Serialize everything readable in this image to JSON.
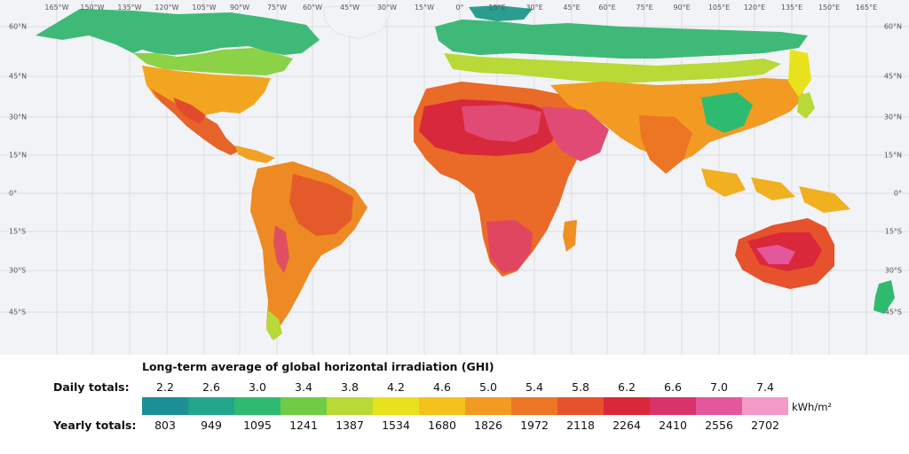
{
  "map": {
    "longitude_labels": [
      "165°W",
      "150°W",
      "135°W",
      "120°W",
      "105°W",
      "90°W",
      "75°W",
      "60°W",
      "45°W",
      "30°W",
      "15°W",
      "0°",
      "15°E",
      "30°E",
      "45°E",
      "60°E",
      "75°E",
      "90°E",
      "105°E",
      "120°E",
      "135°E",
      "150°E",
      "165°E"
    ],
    "latitude_labels": [
      "60°N",
      "45°N",
      "30°N",
      "15°N",
      "0°",
      "15°S",
      "30°S",
      "45°S"
    ]
  },
  "legend": {
    "title": "Long-term average of global horizontal irradiation (GHI)",
    "daily_label": "Daily totals:",
    "yearly_label": "Yearly totals:",
    "unit": "kWh/m²",
    "daily_values": [
      "2.2",
      "2.6",
      "3.0",
      "3.4",
      "3.8",
      "4.2",
      "4.6",
      "5.0",
      "5.4",
      "5.8",
      "6.2",
      "6.6",
      "7.0",
      "7.4"
    ],
    "yearly_values": [
      "803",
      "949",
      "1095",
      "1241",
      "1387",
      "1534",
      "1680",
      "1826",
      "1972",
      "2118",
      "2264",
      "2410",
      "2556",
      "2702"
    ],
    "colors": [
      "#1c8f96",
      "#22a58a",
      "#2fbb6f",
      "#6fcc44",
      "#b8d936",
      "#e8e21d",
      "#f4c21a",
      "#f29a22",
      "#ec7624",
      "#e5522b",
      "#d9283a",
      "#d9336b",
      "#e4579c",
      "#f49ac6"
    ]
  }
}
